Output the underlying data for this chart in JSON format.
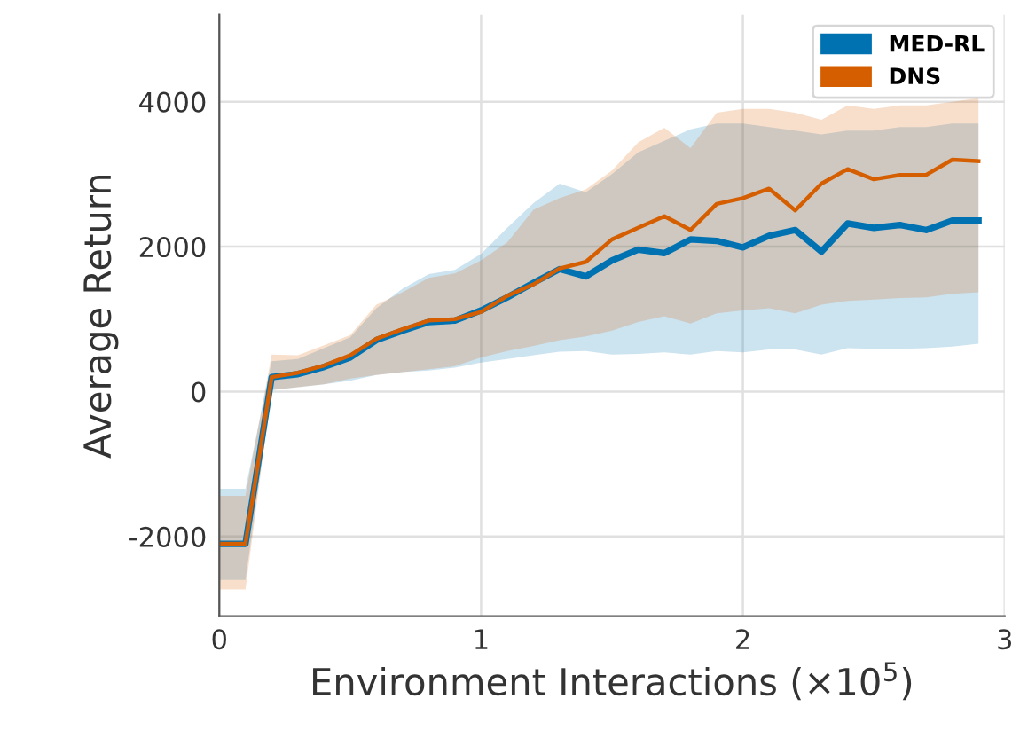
{
  "chart_data": {
    "type": "line",
    "xlabel": "Environment Interactions (×10$^{5}$)",
    "ylabel": "Average Return",
    "x": [
      0,
      0.1,
      0.2,
      0.3,
      0.4,
      0.5,
      0.6,
      0.7,
      0.8,
      0.9,
      1.0,
      1.1,
      1.2,
      1.3,
      1.4,
      1.5,
      1.6,
      1.7,
      1.8,
      1.9,
      2.0,
      2.1,
      2.2,
      2.3,
      2.4,
      2.5,
      2.6,
      2.7,
      2.8,
      2.9
    ],
    "series": [
      {
        "name": "MED-RL",
        "color": "#0072b2",
        "values": [
          -2100,
          -2100,
          200,
          240,
          340,
          470,
          710,
          840,
          960,
          980,
          1120,
          1300,
          1500,
          1690,
          1590,
          1810,
          1960,
          1910,
          2100,
          2080,
          1990,
          2150,
          2230,
          1930,
          2320,
          2260,
          2300,
          2230,
          2360,
          2360
        ],
        "lower": [
          -2600,
          -2600,
          20,
          60,
          100,
          150,
          230,
          270,
          290,
          330,
          400,
          450,
          500,
          550,
          560,
          510,
          520,
          540,
          510,
          560,
          540,
          580,
          580,
          510,
          600,
          590,
          590,
          600,
          620,
          660
        ],
        "upper": [
          -1340,
          -1340,
          420,
          450,
          600,
          750,
          1150,
          1420,
          1620,
          1680,
          1900,
          2260,
          2600,
          2870,
          2750,
          3000,
          3300,
          3460,
          3620,
          3700,
          3700,
          3650,
          3600,
          3550,
          3600,
          3600,
          3650,
          3650,
          3700,
          3700
        ]
      },
      {
        "name": "DNS",
        "color": "#d55e00",
        "values": [
          -2100,
          -2100,
          200,
          260,
          360,
          500,
          730,
          860,
          980,
          1000,
          1100,
          1320,
          1480,
          1700,
          1790,
          2100,
          2260,
          2420,
          2230,
          2590,
          2670,
          2800,
          2500,
          2870,
          3070,
          2930,
          2990,
          2990,
          3200,
          3180
        ],
        "lower": [
          -2730,
          -2730,
          20,
          60,
          100,
          180,
          230,
          270,
          310,
          350,
          470,
          560,
          630,
          710,
          760,
          840,
          960,
          1040,
          940,
          1080,
          1120,
          1150,
          1080,
          1200,
          1250,
          1270,
          1290,
          1300,
          1350,
          1370
        ],
        "upper": [
          -1440,
          -1440,
          510,
          500,
          640,
          780,
          1200,
          1370,
          1570,
          1630,
          1810,
          2060,
          2510,
          2670,
          2790,
          3050,
          3440,
          3640,
          3360,
          3850,
          3900,
          3900,
          3850,
          3750,
          3950,
          3900,
          3950,
          3950,
          4000,
          4050
        ]
      }
    ],
    "xlim": [
      0,
      3
    ],
    "ylim": [
      -3100,
      5200
    ],
    "xticks": [
      0,
      1,
      2,
      3
    ],
    "yticks": [
      -2000,
      0,
      2000,
      4000
    ],
    "grid": true,
    "legend": "top right",
    "marker": "none",
    "line_style": "solid"
  }
}
